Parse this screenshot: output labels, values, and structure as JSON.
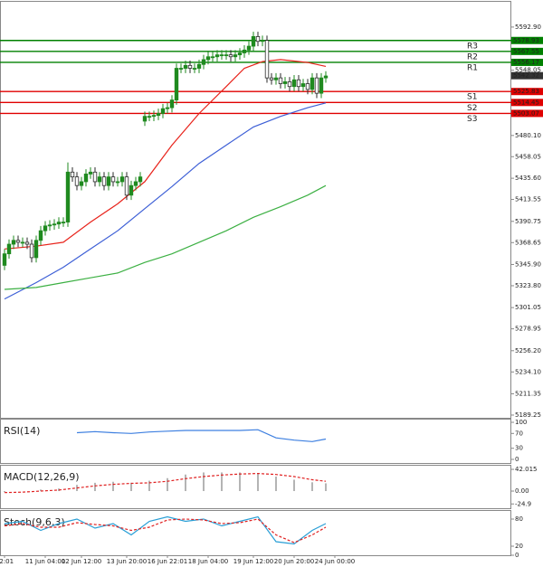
{
  "chart_data": [
    {
      "type": "candlestick",
      "xlim": [
        -1,
        112
      ],
      "xticks": [
        {
          "value": 0,
          "label": "22:01"
        },
        {
          "value": 9,
          "label": "11 Jun 04:00"
        },
        {
          "value": 17,
          "label": "12 Jun 12:00"
        },
        {
          "value": 27,
          "label": "13 Jun 20:00"
        },
        {
          "value": 36,
          "label": "16 Jun 22:01"
        },
        {
          "value": 45,
          "label": "18 Jun 04:00"
        },
        {
          "value": 55,
          "label": "19 Jun 12:00"
        },
        {
          "value": 64,
          "label": "20 Jun 20:00"
        },
        {
          "value": 73,
          "label": "24 Jun 00:00"
        }
      ],
      "ylim": [
        5186.4,
        5620.1
      ],
      "yticks": [
        {
          "value": 5592.9,
          "label": "5592.90"
        },
        5548.05,
        {
          "value": 5480.1,
          "label": "5480.10"
        },
        5458.05,
        {
          "value": 5435.6,
          "label": "5435.60"
        },
        5413.55,
        5390.75,
        5368.65,
        {
          "value": 5345.9,
          "label": "5345.90"
        },
        {
          "value": 5323.8,
          "label": "5323.80"
        },
        5301.05,
        5278.95,
        {
          "value": 5256.2,
          "label": "5256.20"
        },
        {
          "value": 5234.1,
          "label": "5234.10"
        },
        5211.35,
        5189.25
      ],
      "up_color": "#1f8a1f",
      "down_color": "#2a2a2a",
      "open": [
        5345,
        5357,
        5367,
        5371,
        5369,
        5369,
        5367,
        5353,
        5371,
        5381,
        5386,
        5387,
        5388,
        5390,
        5390,
        5442,
        5437,
        5428,
        5432,
        5440,
        5442,
        5432,
        5437,
        5428,
        5437,
        5432,
        5432,
        5437,
        5418,
        5428,
        5432,
        5495,
        5500,
        5500,
        5501,
        5503,
        5508,
        5509,
        5517,
        5550,
        5550,
        5553,
        5550,
        5550,
        5554,
        5559,
        5562,
        5562,
        5564,
        5564,
        5564,
        5562,
        5564,
        5566,
        5569,
        5573,
        5583,
        5578,
        5579,
        5540,
        5538,
        5540,
        5534,
        5536,
        5531,
        5538,
        5531,
        5534,
        5528,
        5540,
        5524,
        5540
      ],
      "high": [
        5362,
        5372,
        5376,
        5376,
        5374,
        5374,
        5372,
        5376,
        5386,
        5391,
        5392,
        5393,
        5395,
        5395,
        5452,
        5447,
        5442,
        5437,
        5445,
        5447,
        5447,
        5442,
        5442,
        5442,
        5442,
        5437,
        5442,
        5442,
        5433,
        5437,
        5442,
        5505,
        5505,
        5506,
        5508,
        5513,
        5514,
        5522,
        5555,
        5555,
        5558,
        5558,
        5555,
        5559,
        5564,
        5567,
        5567,
        5569,
        5569,
        5569,
        5569,
        5569,
        5571,
        5574,
        5578,
        5588,
        5588,
        5584,
        5584,
        5545,
        5545,
        5545,
        5541,
        5541,
        5543,
        5543,
        5539,
        5539,
        5545,
        5545,
        5545,
        5547
      ],
      "low": [
        5340,
        5352,
        5362,
        5364,
        5364,
        5362,
        5348,
        5348,
        5366,
        5376,
        5381,
        5382,
        5383,
        5385,
        5385,
        5432,
        5423,
        5423,
        5427,
        5435,
        5427,
        5427,
        5423,
        5423,
        5427,
        5427,
        5427,
        5413,
        5413,
        5423,
        5427,
        5490,
        5495,
        5495,
        5496,
        5498,
        5503,
        5504,
        5512,
        5545,
        5545,
        5545,
        5545,
        5545,
        5549,
        5554,
        5557,
        5557,
        5559,
        5559,
        5557,
        5557,
        5559,
        5561,
        5564,
        5568,
        5573,
        5573,
        5535,
        5533,
        5533,
        5529,
        5529,
        5526,
        5526,
        5526,
        5526,
        5523,
        5523,
        5519,
        5519,
        5535
      ],
      "close": [
        5357,
        5367,
        5371,
        5369,
        5369,
        5367,
        5353,
        5371,
        5381,
        5386,
        5387,
        5388,
        5390,
        5390,
        5442,
        5437,
        5428,
        5432,
        5440,
        5442,
        5432,
        5437,
        5428,
        5437,
        5432,
        5432,
        5437,
        5418,
        5428,
        5432,
        5437,
        5500,
        5500,
        5501,
        5503,
        5508,
        5509,
        5517,
        5550,
        5550,
        5553,
        5550,
        5550,
        5554,
        5559,
        5562,
        5562,
        5564,
        5564,
        5564,
        5562,
        5564,
        5566,
        5569,
        5573,
        5583,
        5578,
        5579,
        5540,
        5538,
        5540,
        5534,
        5536,
        5531,
        5538,
        5531,
        5534,
        5528,
        5540,
        5524,
        5540,
        5542
      ],
      "moving_averages": [
        {
          "color": "#e8231b",
          "x": [
            0,
            7,
            13,
            19,
            25,
            31,
            37,
            43,
            49,
            53,
            57,
            61,
            67,
            71
          ],
          "values": [
            5362,
            5365,
            5369,
            5390,
            5409,
            5432,
            5470,
            5503,
            5531,
            5550,
            5557,
            5559,
            5556,
            5552
          ]
        },
        {
          "color": "#3d5fd6",
          "x": [
            0,
            7,
            13,
            19,
            25,
            31,
            37,
            43,
            49,
            55,
            61,
            67,
            71
          ],
          "values": [
            5310,
            5327,
            5343,
            5362,
            5381,
            5404,
            5427,
            5451,
            5470,
            5489,
            5500,
            5509,
            5514
          ]
        },
        {
          "color": "#3cb043",
          "x": [
            0,
            7,
            13,
            19,
            25,
            31,
            37,
            43,
            49,
            55,
            61,
            67,
            71
          ],
          "values": [
            5320,
            5322,
            5327,
            5332,
            5337,
            5348,
            5357,
            5369,
            5381,
            5395,
            5406,
            5418,
            5428
          ]
        }
      ],
      "levels": [
        {
          "name": "R3",
          "color": "#008000",
          "value": 5578.93
        },
        {
          "name": "R2",
          "color": "#008000",
          "value": 5567.55
        },
        {
          "name": "R1",
          "color": "#008000",
          "value": 5556.17
        },
        {
          "name": "S1",
          "color": "#e00000",
          "value": 5525.83
        },
        {
          "name": "S2",
          "color": "#e00000",
          "value": 5514.45
        },
        {
          "name": "S3",
          "color": "#e00000",
          "value": 5503.07
        }
      ],
      "last_price": 5542.32
    },
    {
      "type": "line",
      "title": "RSI(14)",
      "ylim": [
        -9.8,
        109.8
      ],
      "yticks": [
        100,
        70,
        30,
        0
      ],
      "x": [
        0,
        4,
        8,
        12,
        16,
        20,
        24,
        28,
        32,
        36,
        40,
        44,
        48,
        52,
        56,
        60,
        64,
        68,
        71
      ],
      "series": [
        {
          "color": "#3d7fe0",
          "values": [
            null,
            null,
            null,
            null,
            72,
            75,
            72,
            70,
            74,
            76,
            78,
            78,
            78,
            78,
            80,
            58,
            52,
            48,
            55
          ]
        }
      ]
    },
    {
      "type": "macd",
      "title": "MACD(12,26,9)",
      "ylim": [
        -33.2,
        50.8
      ],
      "yticks": [
        42.015,
        {
          "value": 0,
          "label": "0.00"
        },
        -24.9
      ],
      "x": [
        0,
        4,
        8,
        12,
        16,
        20,
        24,
        28,
        32,
        36,
        40,
        44,
        48,
        52,
        56,
        60,
        64,
        68,
        71
      ],
      "histogram": {
        "color": "#9a9a9a",
        "values": [
          -2,
          0,
          3,
          5,
          12,
          16,
          18,
          16,
          20,
          25,
          32,
          36,
          36,
          36,
          35,
          28,
          22,
          17,
          15
        ]
      },
      "signal": {
        "color": "#e02020",
        "values": [
          -3,
          -2,
          0,
          2,
          6,
          10,
          13,
          15,
          16,
          19,
          24,
          28,
          31,
          33,
          34,
          32,
          28,
          22,
          19
        ]
      }
    },
    {
      "type": "line",
      "title": "Stoch(9,6,3)",
      "ylim": [
        0,
        100
      ],
      "yticks": [
        80,
        20,
        0
      ],
      "x": [
        0,
        4,
        8,
        12,
        16,
        20,
        24,
        28,
        32,
        36,
        40,
        44,
        48,
        52,
        56,
        60,
        64,
        68,
        71
      ],
      "series": [
        {
          "color": "#2a9fd6",
          "values": [
            70,
            75,
            55,
            70,
            80,
            60,
            70,
            45,
            75,
            85,
            75,
            80,
            65,
            75,
            85,
            30,
            25,
            55,
            70
          ]
        },
        {
          "color": "#e02020",
          "dash": true,
          "values": [
            65,
            70,
            62,
            62,
            72,
            68,
            65,
            55,
            62,
            78,
            80,
            78,
            70,
            72,
            80,
            45,
            28,
            45,
            62
          ]
        }
      ]
    }
  ]
}
